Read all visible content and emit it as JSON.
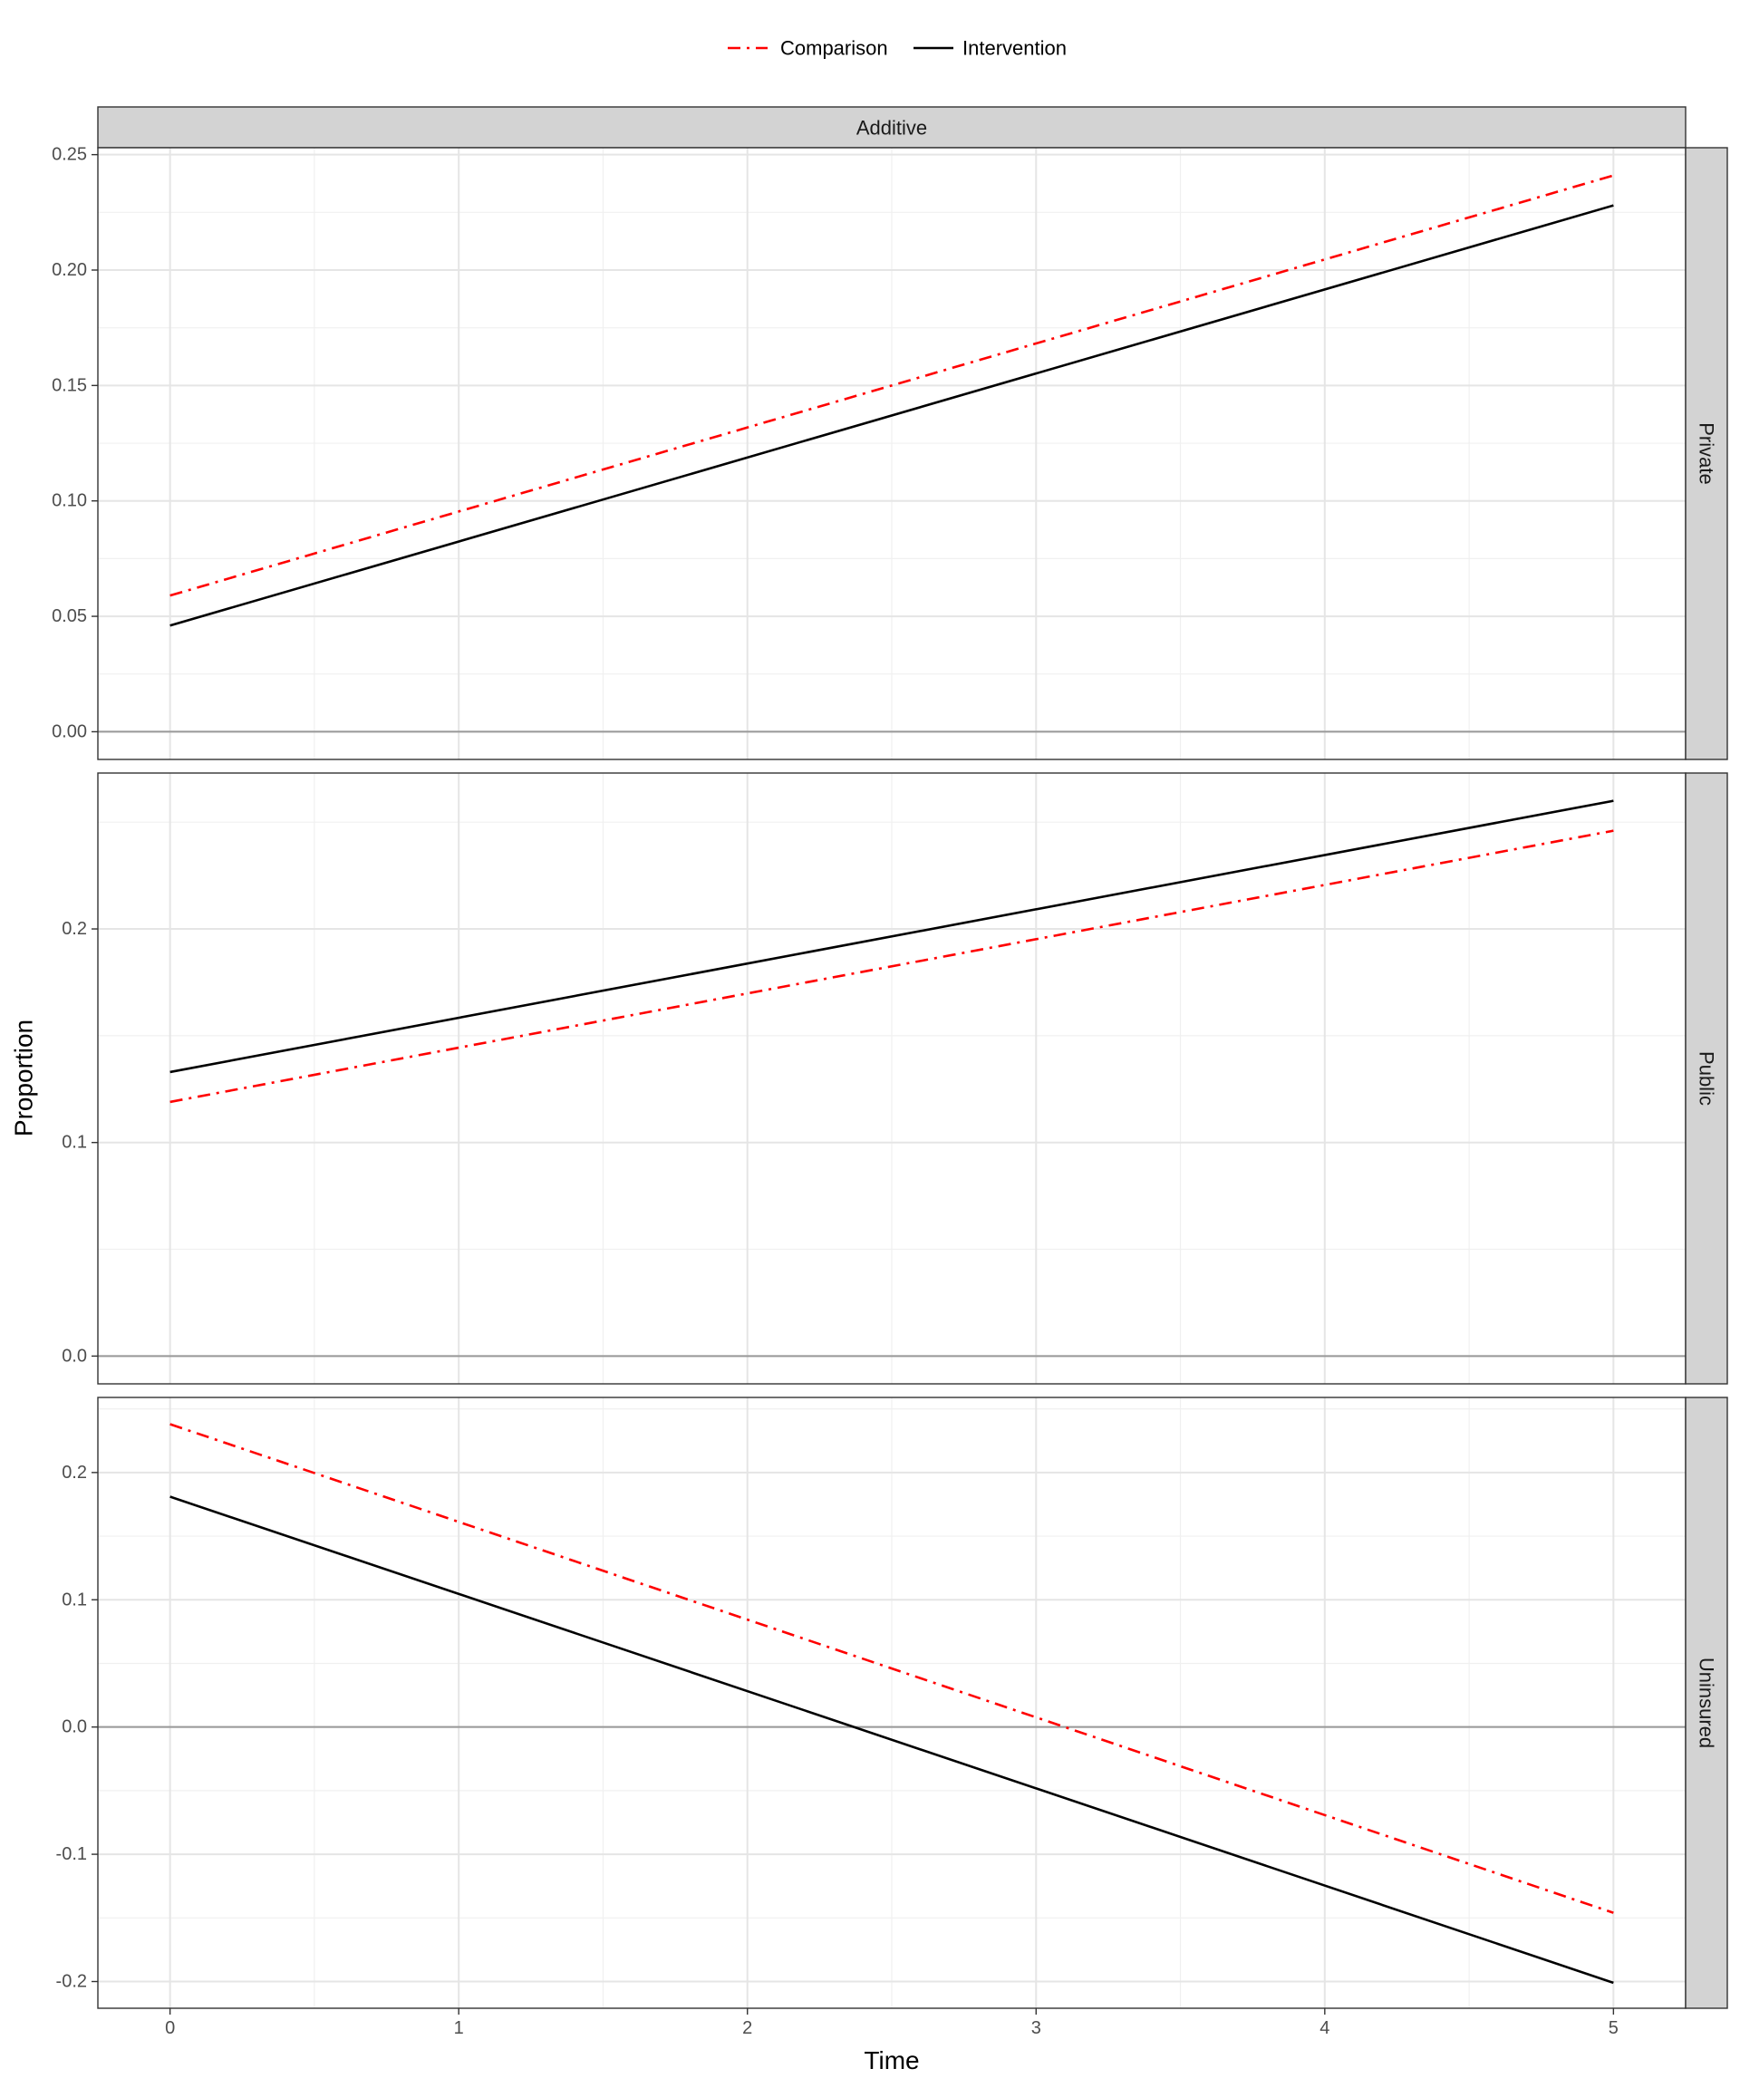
{
  "chart_data": {
    "type": "line",
    "column_strip": "Additive",
    "xlabel": "Time",
    "ylabel": "Proportion",
    "xlim": [
      -0.25,
      5.25
    ],
    "x_ticks": [
      0,
      1,
      2,
      3,
      4,
      5
    ],
    "grid": true,
    "legend": {
      "position": "top",
      "entries": [
        {
          "name": "Comparison",
          "color": "#ff0000",
          "linetype": "dotdash"
        },
        {
          "name": "Intervention",
          "color": "#000000",
          "linetype": "solid"
        }
      ]
    },
    "panels": [
      {
        "strip": "Private",
        "ylim": [
          -0.012,
          0.253
        ],
        "y_ticks": [
          0.0,
          0.05,
          0.1,
          0.15,
          0.2,
          0.25
        ],
        "y_tick_labels": [
          "0.00",
          "0.05",
          "0.10",
          "0.15",
          "0.20",
          "0.25"
        ],
        "series": [
          {
            "name": "Comparison",
            "x": [
              0,
              5
            ],
            "y": [
              0.059,
              0.241
            ]
          },
          {
            "name": "Intervention",
            "x": [
              0,
              5
            ],
            "y": [
              0.046,
              0.228
            ]
          }
        ]
      },
      {
        "strip": "Public",
        "ylim": [
          -0.013,
          0.273
        ],
        "y_ticks": [
          0.0,
          0.1,
          0.2
        ],
        "y_tick_labels": [
          "0.0",
          "0.1",
          "0.2"
        ],
        "series": [
          {
            "name": "Comparison",
            "x": [
              0,
              5
            ],
            "y": [
              0.119,
              0.246
            ]
          },
          {
            "name": "Intervention",
            "x": [
              0,
              5
            ],
            "y": [
              0.133,
              0.26
            ]
          }
        ]
      },
      {
        "strip": "Uninsured",
        "ylim": [
          -0.221,
          0.259
        ],
        "y_ticks": [
          -0.2,
          -0.1,
          0.0,
          0.1,
          0.2
        ],
        "y_tick_labels": [
          "-0.2",
          "-0.1",
          "0.0",
          "0.1",
          "0.2"
        ],
        "series": [
          {
            "name": "Comparison",
            "x": [
              0,
              5
            ],
            "y": [
              0.238,
              -0.146
            ]
          },
          {
            "name": "Intervention",
            "x": [
              0,
              5
            ],
            "y": [
              0.181,
              -0.201
            ]
          }
        ]
      }
    ]
  }
}
